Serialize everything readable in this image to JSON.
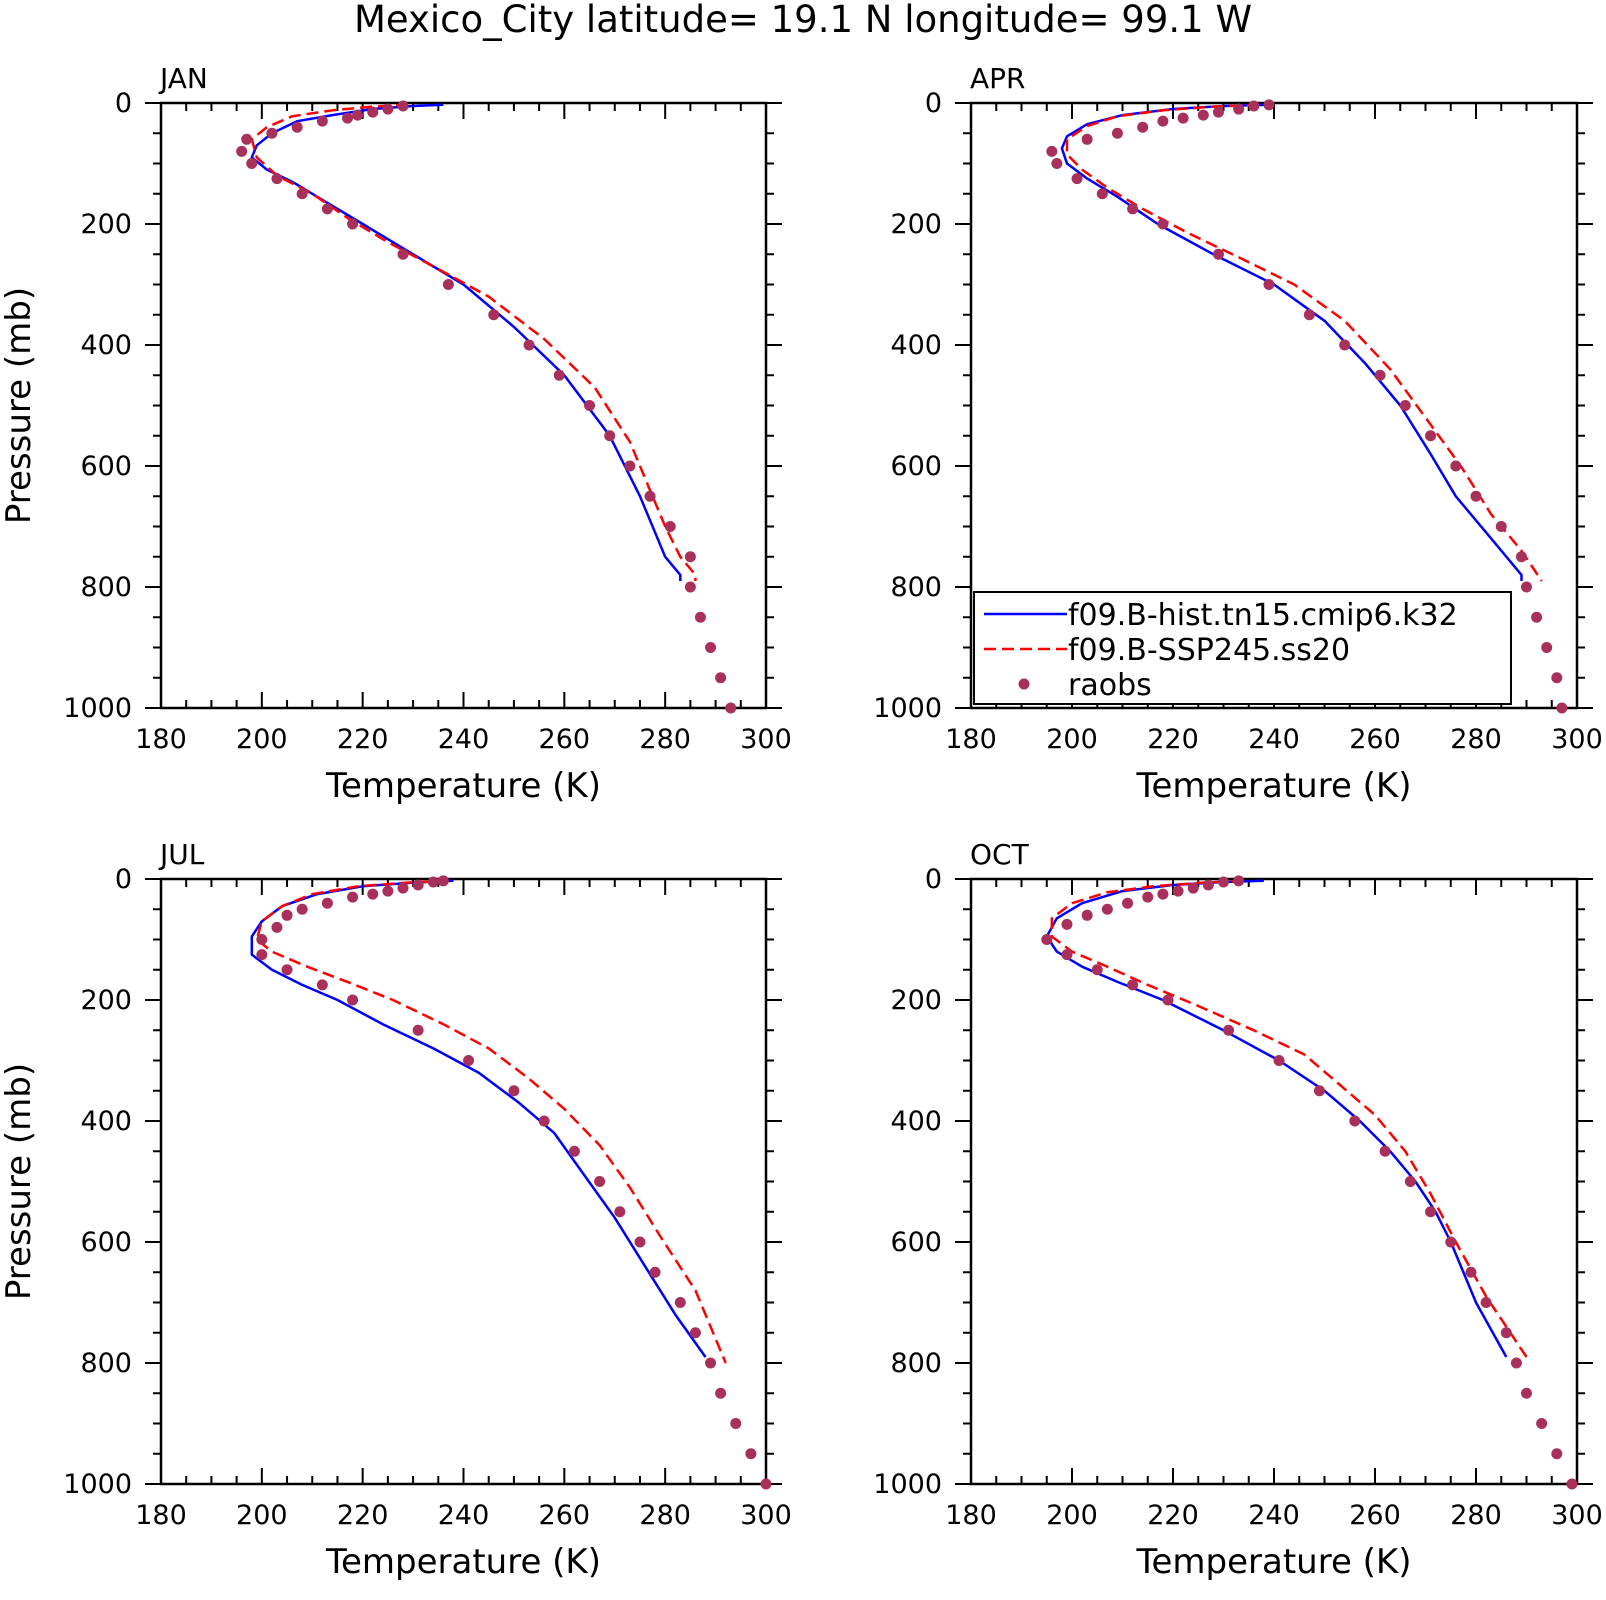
{
  "title": "Mexico_City  latitude= 19.1 N longitude= 99.1 W",
  "colors": {
    "model1": "#0000ff",
    "model2": "#ff0000",
    "obs": "#a8305a"
  },
  "legend": {
    "placement": "inside APR panel, lower-left",
    "entries": [
      "f09.B-hist.tn15.cmip6.k32",
      "f09.B-SSP245.ss20",
      "raobs"
    ]
  },
  "chart_data": [
    {
      "type": "line",
      "title": "JAN",
      "xlabel": "Temperature (K)",
      "ylabel": "Pressure (mb)",
      "xlim": [
        180,
        300
      ],
      "ylim": [
        0,
        1000
      ],
      "y_inverted": true,
      "xticks": [
        "180",
        "200",
        "220",
        "240",
        "260",
        "280",
        "300"
      ],
      "yticks": [
        "0",
        "200",
        "400",
        "600",
        "800",
        "1000"
      ],
      "series": [
        {
          "name": "f09.B-hist.tn15.cmip6.k32",
          "style": "solid",
          "x": [
            236,
            230,
            222,
            214,
            207,
            202,
            199,
            198,
            201,
            206,
            212,
            220,
            230,
            240,
            250,
            260,
            269,
            272,
            275,
            280,
            283,
            283
          ],
          "y": [
            3,
            5,
            10,
            20,
            30,
            50,
            70,
            90,
            110,
            130,
            160,
            200,
            250,
            300,
            370,
            450,
            550,
            600,
            650,
            750,
            780,
            790
          ]
        },
        {
          "name": "f09.B-SSP245.ss20",
          "style": "dashed",
          "x": [
            229,
            222,
            214,
            206,
            201,
            198,
            199,
            203,
            210,
            217,
            225,
            234,
            245,
            256,
            266,
            273,
            277,
            280,
            283,
            286,
            286
          ],
          "y": [
            3,
            6,
            12,
            22,
            40,
            60,
            90,
            120,
            150,
            190,
            230,
            270,
            320,
            390,
            470,
            560,
            640,
            700,
            750,
            780,
            790
          ]
        },
        {
          "name": "raobs",
          "style": "points",
          "x": [
            228,
            225,
            222,
            219,
            217,
            212,
            207,
            202,
            197,
            196,
            198,
            203,
            208,
            213,
            218,
            228,
            237,
            246,
            253,
            259,
            265,
            269,
            273,
            277,
            281,
            285,
            285,
            287,
            289,
            291,
            293
          ],
          "y": [
            5,
            10,
            15,
            20,
            25,
            30,
            40,
            50,
            60,
            80,
            100,
            125,
            150,
            175,
            200,
            250,
            300,
            350,
            400,
            450,
            500,
            550,
            600,
            650,
            700,
            750,
            800,
            850,
            900,
            950,
            1000
          ]
        }
      ]
    },
    {
      "type": "line",
      "title": "APR",
      "xlabel": "Temperature (K)",
      "ylabel": "",
      "xlim": [
        180,
        300
      ],
      "ylim": [
        0,
        1000
      ],
      "y_inverted": true,
      "xticks": [
        "180",
        "200",
        "220",
        "240",
        "260",
        "280",
        "300"
      ],
      "yticks": [
        "0",
        "200",
        "400",
        "600",
        "800",
        "1000"
      ],
      "series": [
        {
          "name": "f09.B-hist.tn15.cmip6.k32",
          "style": "solid",
          "x": [
            239,
            230,
            220,
            210,
            203,
            199,
            198,
            199,
            203,
            209,
            217,
            228,
            240,
            250,
            258,
            265,
            271,
            276,
            283,
            289,
            289
          ],
          "y": [
            3,
            5,
            10,
            20,
            35,
            55,
            75,
            100,
            125,
            155,
            200,
            250,
            300,
            360,
            430,
            500,
            580,
            650,
            720,
            780,
            790
          ]
        },
        {
          "name": "f09.B-SSP245.ss20",
          "style": "dashed",
          "x": [
            237,
            228,
            218,
            209,
            203,
            199,
            199,
            202,
            207,
            214,
            223,
            233,
            244,
            254,
            263,
            270,
            277,
            283,
            289,
            293
          ],
          "y": [
            3,
            6,
            12,
            22,
            38,
            60,
            85,
            110,
            140,
            175,
            215,
            255,
            300,
            360,
            440,
            520,
            600,
            680,
            740,
            790
          ]
        },
        {
          "name": "raobs",
          "style": "points",
          "x": [
            239,
            236,
            233,
            229,
            226,
            222,
            218,
            214,
            209,
            203,
            196,
            197,
            201,
            206,
            212,
            218,
            229,
            239,
            247,
            254,
            261,
            266,
            271,
            276,
            280,
            285,
            289,
            290,
            292,
            294,
            296,
            297
          ],
          "y": [
            3,
            5,
            10,
            15,
            20,
            25,
            30,
            40,
            50,
            60,
            80,
            100,
            125,
            150,
            175,
            200,
            250,
            300,
            350,
            400,
            450,
            500,
            550,
            600,
            650,
            700,
            750,
            800,
            850,
            900,
            950,
            1000
          ]
        }
      ]
    },
    {
      "type": "line",
      "title": "JUL",
      "xlabel": "Temperature (K)",
      "ylabel": "Pressure (mb)",
      "xlim": [
        180,
        300
      ],
      "ylim": [
        0,
        1000
      ],
      "y_inverted": true,
      "xticks": [
        "180",
        "200",
        "220",
        "240",
        "260",
        "280",
        "300"
      ],
      "yticks": [
        "0",
        "200",
        "400",
        "600",
        "800",
        "1000"
      ],
      "series": [
        {
          "name": "f09.B-hist.tn15.cmip6.k32",
          "style": "solid",
          "x": [
            238,
            230,
            220,
            211,
            204,
            200,
            198,
            198,
            202,
            208,
            215,
            224,
            234,
            243,
            251,
            258,
            264,
            270,
            276,
            282,
            288
          ],
          "y": [
            3,
            6,
            12,
            25,
            45,
            70,
            95,
            125,
            150,
            175,
            200,
            240,
            280,
            320,
            370,
            420,
            490,
            560,
            640,
            720,
            790
          ]
        },
        {
          "name": "f09.B-SSP245.ss20",
          "style": "dashed",
          "x": [
            237,
            229,
            219,
            210,
            204,
            200,
            199,
            202,
            209,
            217,
            226,
            236,
            245,
            253,
            260,
            267,
            273,
            279,
            286,
            292
          ],
          "y": [
            3,
            6,
            12,
            25,
            45,
            70,
            100,
            120,
            145,
            170,
            200,
            240,
            280,
            330,
            380,
            440,
            510,
            590,
            680,
            800
          ]
        },
        {
          "name": "raobs",
          "style": "points",
          "x": [
            236,
            234,
            231,
            228,
            225,
            222,
            218,
            213,
            208,
            205,
            203,
            200,
            200,
            205,
            212,
            218,
            231,
            241,
            250,
            256,
            262,
            267,
            271,
            275,
            278,
            283,
            286,
            289,
            291,
            294,
            297,
            300
          ],
          "y": [
            3,
            5,
            10,
            15,
            20,
            25,
            30,
            40,
            50,
            60,
            80,
            100,
            125,
            150,
            175,
            200,
            250,
            300,
            350,
            400,
            450,
            500,
            550,
            600,
            650,
            700,
            750,
            800,
            850,
            900,
            950,
            1000
          ]
        }
      ]
    },
    {
      "type": "line",
      "title": "OCT",
      "xlabel": "Temperature (K)",
      "ylabel": "",
      "xlim": [
        180,
        300
      ],
      "ylim": [
        0,
        1000
      ],
      "y_inverted": true,
      "xticks": [
        "180",
        "200",
        "220",
        "240",
        "260",
        "280",
        "300"
      ],
      "yticks": [
        "0",
        "200",
        "400",
        "600",
        "800",
        "1000"
      ],
      "series": [
        {
          "name": "f09.B-hist.tn15.cmip6.k32",
          "style": "solid",
          "x": [
            238,
            230,
            220,
            210,
            202,
            197,
            195,
            197,
            202,
            209,
            218,
            230,
            241,
            250,
            257,
            263,
            268,
            272,
            275,
            280,
            286
          ],
          "y": [
            3,
            5,
            10,
            20,
            40,
            65,
            95,
            120,
            145,
            170,
            200,
            250,
            300,
            350,
            400,
            450,
            500,
            550,
            600,
            700,
            790
          ]
        },
        {
          "name": "f09.B-SSP245.ss20",
          "style": "dashed",
          "x": [
            234,
            226,
            216,
            207,
            200,
            196,
            196,
            200,
            207,
            215,
            225,
            236,
            246,
            253,
            260,
            266,
            271,
            276,
            282,
            290
          ],
          "y": [
            3,
            6,
            12,
            22,
            40,
            65,
            95,
            120,
            145,
            175,
            210,
            250,
            290,
            340,
            390,
            450,
            520,
            600,
            690,
            790
          ]
        },
        {
          "name": "raobs",
          "style": "points",
          "x": [
            233,
            230,
            227,
            224,
            221,
            218,
            215,
            211,
            207,
            203,
            199,
            195,
            199,
            205,
            212,
            219,
            231,
            241,
            249,
            256,
            262,
            267,
            271,
            275,
            279,
            282,
            286,
            288,
            290,
            293,
            296,
            299
          ],
          "y": [
            3,
            5,
            10,
            15,
            20,
            25,
            30,
            40,
            50,
            60,
            75,
            100,
            125,
            150,
            175,
            200,
            250,
            300,
            350,
            400,
            450,
            500,
            550,
            600,
            650,
            700,
            750,
            800,
            850,
            900,
            950,
            1000
          ]
        }
      ]
    }
  ]
}
